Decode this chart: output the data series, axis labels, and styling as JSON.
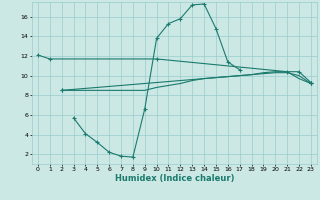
{
  "xlabel": "Humidex (Indice chaleur)",
  "background_color": "#cce8e4",
  "grid_color": "#99cccc",
  "line_color": "#1a7a6e",
  "xlim": [
    -0.5,
    23.5
  ],
  "ylim": [
    1.0,
    17.5
  ],
  "x_ticks": [
    0,
    1,
    2,
    3,
    4,
    5,
    6,
    7,
    8,
    9,
    10,
    11,
    12,
    13,
    14,
    15,
    16,
    17,
    18,
    19,
    20,
    21,
    22,
    23
  ],
  "y_ticks": [
    2,
    4,
    6,
    8,
    10,
    12,
    14,
    16
  ],
  "line1_x": [
    0,
    1,
    10,
    21,
    22,
    23
  ],
  "line1_y": [
    12.1,
    11.7,
    11.7,
    10.4,
    10.4,
    9.3
  ],
  "line2_x": [
    3,
    4,
    5,
    6,
    7,
    8,
    9,
    10,
    11,
    12,
    13,
    14,
    15,
    16,
    17
  ],
  "line2_y": [
    5.7,
    4.1,
    3.2,
    2.2,
    1.8,
    1.7,
    6.6,
    13.8,
    15.3,
    15.8,
    17.2,
    17.3,
    14.8,
    11.4,
    10.6
  ],
  "line3_x": [
    2,
    3,
    4,
    5,
    6,
    7,
    8,
    9,
    10,
    11,
    12,
    13,
    14,
    15,
    16,
    17,
    18,
    19,
    20,
    21,
    22,
    23
  ],
  "line3_y": [
    8.5,
    8.5,
    8.5,
    8.5,
    8.5,
    8.5,
    8.5,
    8.5,
    8.8,
    9.0,
    9.2,
    9.5,
    9.7,
    9.8,
    9.9,
    10.0,
    10.1,
    10.3,
    10.4,
    10.4,
    9.7,
    9.2
  ],
  "line4_x": [
    2,
    3,
    4,
    5,
    6,
    7,
    8,
    9,
    10,
    11,
    12,
    13,
    14,
    15,
    16,
    17,
    18,
    19,
    20,
    21,
    22,
    23
  ],
  "line4_y": [
    8.5,
    8.6,
    8.7,
    8.8,
    8.9,
    9.0,
    9.1,
    9.2,
    9.3,
    9.4,
    9.5,
    9.6,
    9.7,
    9.8,
    9.9,
    10.0,
    10.1,
    10.2,
    10.3,
    10.3,
    10.0,
    9.2
  ]
}
